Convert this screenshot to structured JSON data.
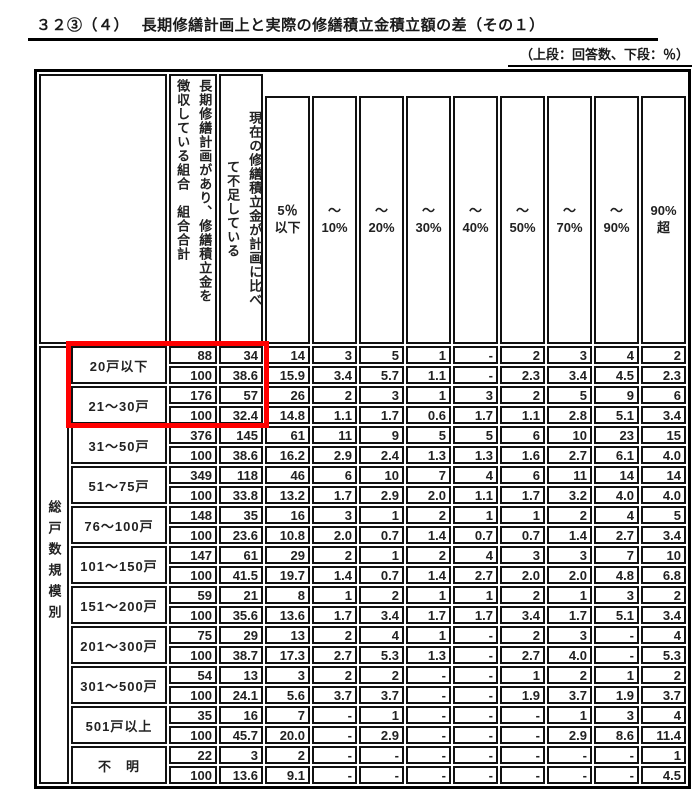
{
  "title": "３２③（４）　 長期修繕計画上と実際の修繕積立金積立額の差（その１）",
  "subtitle": "（上段：回答数、下段：％）",
  "table": {
    "group_label": "総戸数規模別",
    "col_total_lines": [
      "長期修繕計画があり、修繕積立金を",
      "徴収している組合　組合合計"
    ],
    "col_shortage_lines": [
      "現在の修繕積立金が計画に比べ",
      "て不足している"
    ],
    "pct_headers": [
      "5％\n以下",
      "～\n10%",
      "～\n20%",
      "～\n30%",
      "～\n40%",
      "～\n50%",
      "～\n70%",
      "～\n90%",
      "90%\n超"
    ],
    "highlight_color": "#ff0000",
    "rows": [
      {
        "label": "20戸以下",
        "counts": [
          "88",
          "34",
          "14",
          "3",
          "5",
          "1",
          "-",
          "2",
          "3",
          "4",
          "2"
        ],
        "pcts": [
          "100",
          "38.6",
          "15.9",
          "3.4",
          "5.7",
          "1.1",
          "-",
          "2.3",
          "3.4",
          "4.5",
          "2.3"
        ]
      },
      {
        "label": "21～30戸",
        "counts": [
          "176",
          "57",
          "26",
          "2",
          "3",
          "1",
          "3",
          "2",
          "5",
          "9",
          "6"
        ],
        "pcts": [
          "100",
          "32.4",
          "14.8",
          "1.1",
          "1.7",
          "0.6",
          "1.7",
          "1.1",
          "2.8",
          "5.1",
          "3.4"
        ]
      },
      {
        "label": "31～50戸",
        "counts": [
          "376",
          "145",
          "61",
          "11",
          "9",
          "5",
          "5",
          "6",
          "10",
          "23",
          "15"
        ],
        "pcts": [
          "100",
          "38.6",
          "16.2",
          "2.9",
          "2.4",
          "1.3",
          "1.3",
          "1.6",
          "2.7",
          "6.1",
          "4.0"
        ]
      },
      {
        "label": "51～75戸",
        "counts": [
          "349",
          "118",
          "46",
          "6",
          "10",
          "7",
          "4",
          "6",
          "11",
          "14",
          "14"
        ],
        "pcts": [
          "100",
          "33.8",
          "13.2",
          "1.7",
          "2.9",
          "2.0",
          "1.1",
          "1.7",
          "3.2",
          "4.0",
          "4.0"
        ]
      },
      {
        "label": "76～100戸",
        "counts": [
          "148",
          "35",
          "16",
          "3",
          "1",
          "2",
          "1",
          "1",
          "2",
          "4",
          "5"
        ],
        "pcts": [
          "100",
          "23.6",
          "10.8",
          "2.0",
          "0.7",
          "1.4",
          "0.7",
          "0.7",
          "1.4",
          "2.7",
          "3.4"
        ]
      },
      {
        "label": "101～150戸",
        "counts": [
          "147",
          "61",
          "29",
          "2",
          "1",
          "2",
          "4",
          "3",
          "3",
          "7",
          "10"
        ],
        "pcts": [
          "100",
          "41.5",
          "19.7",
          "1.4",
          "0.7",
          "1.4",
          "2.7",
          "2.0",
          "2.0",
          "4.8",
          "6.8"
        ]
      },
      {
        "label": "151～200戸",
        "counts": [
          "59",
          "21",
          "8",
          "1",
          "2",
          "1",
          "1",
          "2",
          "1",
          "3",
          "2"
        ],
        "pcts": [
          "100",
          "35.6",
          "13.6",
          "1.7",
          "3.4",
          "1.7",
          "1.7",
          "3.4",
          "1.7",
          "5.1",
          "3.4"
        ]
      },
      {
        "label": "201～300戸",
        "counts": [
          "75",
          "29",
          "13",
          "2",
          "4",
          "1",
          "-",
          "2",
          "3",
          "-",
          "4"
        ],
        "pcts": [
          "100",
          "38.7",
          "17.3",
          "2.7",
          "5.3",
          "1.3",
          "-",
          "2.7",
          "4.0",
          "-",
          "5.3"
        ]
      },
      {
        "label": "301～500戸",
        "counts": [
          "54",
          "13",
          "3",
          "2",
          "2",
          "-",
          "-",
          "1",
          "2",
          "1",
          "2"
        ],
        "pcts": [
          "100",
          "24.1",
          "5.6",
          "3.7",
          "3.7",
          "-",
          "-",
          "1.9",
          "3.7",
          "1.9",
          "3.7"
        ]
      },
      {
        "label": "501戸以上",
        "counts": [
          "35",
          "16",
          "7",
          "-",
          "1",
          "-",
          "-",
          "-",
          "1",
          "3",
          "4"
        ],
        "pcts": [
          "100",
          "45.7",
          "20.0",
          "-",
          "2.9",
          "-",
          "-",
          "-",
          "2.9",
          "8.6",
          "11.4"
        ]
      },
      {
        "label": "不　明",
        "counts": [
          "22",
          "3",
          "2",
          "-",
          "-",
          "-",
          "-",
          "-",
          "-",
          "-",
          "1"
        ],
        "pcts": [
          "100",
          "13.6",
          "9.1",
          "-",
          "-",
          "-",
          "-",
          "-",
          "-",
          "-",
          "4.5"
        ]
      }
    ]
  }
}
